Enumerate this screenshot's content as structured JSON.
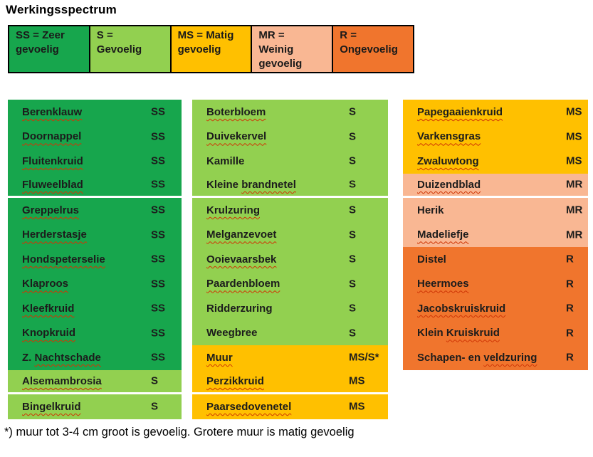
{
  "title": "Werkingsspectrum",
  "footnote": "*) muur tot 3-4 cm groot is gevoelig. Grotere muur is matig gevoelig",
  "colors": {
    "SS": "#17A64D",
    "S": "#92D050",
    "MS": "#FFC000",
    "MR": "#F9B793",
    "R": "#F0752D",
    "squiggle": "#CF3505",
    "text": "#1C1C1C",
    "border": "#000000"
  },
  "legend": {
    "cells": [
      {
        "code": "SS",
        "color": "SS",
        "lines": [
          "SS = Zeer",
          "gevoelig"
        ]
      },
      {
        "code": "S",
        "color": "S",
        "lines": [
          "S =",
          "Gevoelig"
        ]
      },
      {
        "code": "MS",
        "color": "MS",
        "lines": [
          "MS = Matig",
          "gevoelig"
        ]
      },
      {
        "code": "MR",
        "color": "MR",
        "lines": [
          "MR =",
          "Weinig",
          "gevoelig"
        ]
      },
      {
        "code": "R",
        "color": "R",
        "lines": [
          "R =",
          "Ongevoelig"
        ]
      }
    ]
  },
  "columns": [
    {
      "rows": [
        {
          "name": [
            {
              "t": "Berenklauw",
              "sq": true
            }
          ],
          "value": "SS",
          "color": "SS",
          "divider_after": false
        },
        {
          "name": [
            {
              "t": "Doornappel",
              "sq": true
            }
          ],
          "value": "SS",
          "color": "SS",
          "divider_after": false
        },
        {
          "name": [
            {
              "t": "Fluitenkruid",
              "sq": true
            }
          ],
          "value": "SS",
          "color": "SS",
          "divider_after": false
        },
        {
          "name": [
            {
              "t": "Fluweelblad",
              "sq": true
            }
          ],
          "value": "SS",
          "color": "SS",
          "divider_after": true
        },
        {
          "name": [
            {
              "t": "Greppelrus",
              "sq": true
            }
          ],
          "value": "SS",
          "color": "SS",
          "divider_after": false
        },
        {
          "name": [
            {
              "t": "Herderstasje",
              "sq": true
            }
          ],
          "value": "SS",
          "color": "SS",
          "divider_after": false
        },
        {
          "name": [
            {
              "t": "Hondspeterselie",
              "sq": true
            }
          ],
          "value": "SS",
          "color": "SS",
          "divider_after": false
        },
        {
          "name": [
            {
              "t": "Klaproos",
              "sq": true
            }
          ],
          "value": "SS",
          "color": "SS",
          "divider_after": false
        },
        {
          "name": [
            {
              "t": "Kleefkruid",
              "sq": true
            }
          ],
          "value": "SS",
          "color": "SS",
          "divider_after": false
        },
        {
          "name": [
            {
              "t": "Knopkruid",
              "sq": true
            }
          ],
          "value": "SS",
          "color": "SS",
          "divider_after": false
        },
        {
          "name": [
            {
              "t": "Z. ",
              "sq": false
            },
            {
              "t": "Nachtschade",
              "sq": true
            }
          ],
          "value": "SS",
          "color": "SS",
          "divider_after": false
        },
        {
          "name": [
            {
              "t": "Alsemambrosia",
              "sq": true
            }
          ],
          "value": "S",
          "color": "S",
          "divider_after": true
        },
        {
          "name": [
            {
              "t": "Bingelkruid",
              "sq": true
            }
          ],
          "value": "S",
          "color": "S",
          "divider_after": false
        }
      ]
    },
    {
      "rows": [
        {
          "name": [
            {
              "t": "Boterbloem",
              "sq": true
            }
          ],
          "value": "S",
          "color": "S",
          "divider_after": false
        },
        {
          "name": [
            {
              "t": "Duivekervel",
              "sq": true
            }
          ],
          "value": "S",
          "color": "S",
          "divider_after": false
        },
        {
          "name": [
            {
              "t": "Kamille",
              "sq": false
            }
          ],
          "value": "S",
          "color": "S",
          "divider_after": false
        },
        {
          "name": [
            {
              "t": "Kleine ",
              "sq": false
            },
            {
              "t": "brandnetel",
              "sq": true
            }
          ],
          "value": "S",
          "color": "S",
          "divider_after": true
        },
        {
          "name": [
            {
              "t": "Krulzuring",
              "sq": true
            }
          ],
          "value": "S",
          "color": "S",
          "divider_after": false
        },
        {
          "name": [
            {
              "t": "Melganzevoet",
              "sq": true
            }
          ],
          "value": "S",
          "color": "S",
          "divider_after": false
        },
        {
          "name": [
            {
              "t": "Ooievaarsbek",
              "sq": true
            }
          ],
          "value": "S",
          "color": "S",
          "divider_after": false
        },
        {
          "name": [
            {
              "t": "Paardenbloem",
              "sq": true
            }
          ],
          "value": "S",
          "color": "S",
          "divider_after": false
        },
        {
          "name": [
            {
              "t": "Ridderzuring",
              "sq": false
            }
          ],
          "value": "S",
          "color": "S",
          "divider_after": false
        },
        {
          "name": [
            {
              "t": "Weegbree",
              "sq": false
            }
          ],
          "value": "S",
          "color": "S",
          "divider_after": false
        },
        {
          "name": [
            {
              "t": "Muur",
              "sq": true
            }
          ],
          "value": "MS/S*",
          "color": "MS",
          "divider_after": false
        },
        {
          "name": [
            {
              "t": "Perzikkruid",
              "sq": true
            }
          ],
          "value": "MS",
          "color": "MS",
          "divider_after": true
        },
        {
          "name": [
            {
              "t": "Paarsedovenetel",
              "sq": true
            }
          ],
          "value": "MS",
          "color": "MS",
          "divider_after": false
        }
      ]
    },
    {
      "rows": [
        {
          "name": [
            {
              "t": "Papegaaienkruid",
              "sq": true
            }
          ],
          "value": "MS",
          "color": "MS",
          "divider_after": false
        },
        {
          "name": [
            {
              "t": "Varkensgras",
              "sq": true
            }
          ],
          "value": "MS",
          "color": "MS",
          "divider_after": false
        },
        {
          "name": [
            {
              "t": "Zwaluwtong",
              "sq": true
            }
          ],
          "value": "MS",
          "color": "MS",
          "divider_after": false
        },
        {
          "name": [
            {
              "t": "Duizendblad",
              "sq": true
            }
          ],
          "value": "MR",
          "color": "MR",
          "divider_after": true
        },
        {
          "name": [
            {
              "t": "Herik",
              "sq": false
            }
          ],
          "value": "MR",
          "color": "MR",
          "divider_after": false
        },
        {
          "name": [
            {
              "t": "Madeliefje",
              "sq": true
            }
          ],
          "value": "MR",
          "color": "MR",
          "divider_after": false
        },
        {
          "name": [
            {
              "t": "Distel",
              "sq": false
            }
          ],
          "value": "R",
          "color": "R",
          "divider_after": false
        },
        {
          "name": [
            {
              "t": "Heermoes",
              "sq": true
            }
          ],
          "value": "R",
          "color": "R",
          "divider_after": false
        },
        {
          "name": [
            {
              "t": "Jacobskruiskruid",
              "sq": true
            }
          ],
          "value": "R",
          "color": "R",
          "divider_after": false
        },
        {
          "name": [
            {
              "t": "Klein ",
              "sq": false
            },
            {
              "t": "Kruiskruid",
              "sq": true
            }
          ],
          "value": "R",
          "color": "R",
          "divider_after": false
        },
        {
          "name": [
            {
              "t": "Schapen- en ",
              "sq": false
            },
            {
              "t": "veldzuring",
              "sq": true
            }
          ],
          "value": "R",
          "color": "R",
          "divider_after": false
        }
      ]
    }
  ]
}
